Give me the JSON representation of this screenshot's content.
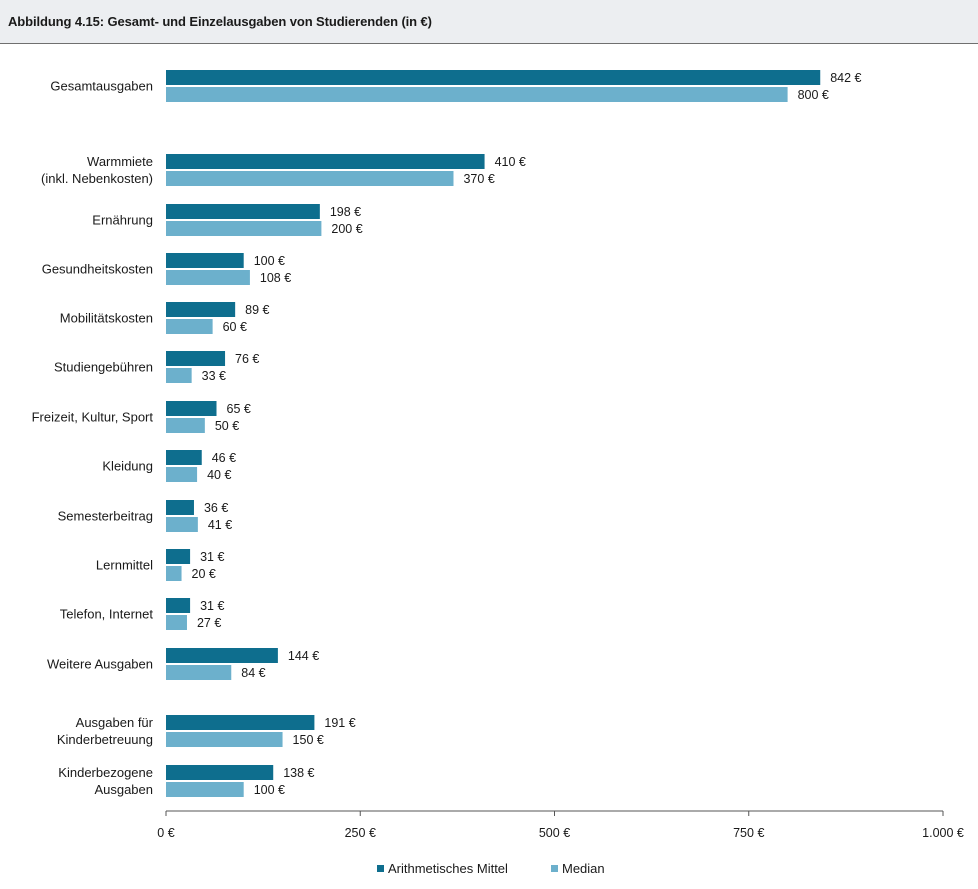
{
  "title": "Abbildung 4.15: Gesamt- und Einzelausgaben von Studierenden (in €)",
  "colors": {
    "mean": "#0e6e8e",
    "median": "#6cb0cc",
    "axis": "#555555",
    "title_bg": "#eceef1"
  },
  "chart_data": {
    "type": "bar",
    "orientation": "horizontal",
    "categories": [
      [
        "Gesamtausgaben"
      ],
      [
        "Warmmiete",
        "(inkl. Nebenkosten)"
      ],
      [
        "Ernährung"
      ],
      [
        "Gesundheitskosten"
      ],
      [
        "Mobilitätskosten"
      ],
      [
        "Studiengebühren"
      ],
      [
        "Freizeit, Kultur, Sport"
      ],
      [
        "Kleidung"
      ],
      [
        "Semesterbeitrag"
      ],
      [
        "Lernmittel"
      ],
      [
        "Telefon, Internet"
      ],
      [
        "Weitere Ausgaben"
      ],
      [
        "Ausgaben für",
        "Kinderbetreuung"
      ],
      [
        "Kinderbezogene",
        "Ausgaben"
      ]
    ],
    "series": [
      {
        "name": "Arithmetisches Mittel",
        "values": [
          842,
          410,
          198,
          100,
          89,
          76,
          65,
          46,
          36,
          31,
          31,
          144,
          191,
          138
        ],
        "labels": [
          "842 €",
          "410 €",
          "198 €",
          "100 €",
          "89 €",
          "76 €",
          "65 €",
          "46 €",
          "36 €",
          "31 €",
          "31 €",
          "144 €",
          "191 €",
          "138 €"
        ]
      },
      {
        "name": "Median",
        "values": [
          800,
          370,
          200,
          108,
          60,
          33,
          50,
          40,
          41,
          20,
          27,
          84,
          150,
          100
        ],
        "labels": [
          "800 €",
          "370 €",
          "200 €",
          "108 €",
          "60 €",
          "33 €",
          "50 €",
          "40 €",
          "41 €",
          "20 €",
          "27 €",
          "84 €",
          "150 €",
          "100 €"
        ]
      }
    ],
    "xlim": [
      0,
      1000
    ],
    "xticks": [
      0,
      250,
      500,
      750,
      1000
    ],
    "xtick_labels": [
      "0 €",
      "250 €",
      "500 €",
      "750 €",
      "1.000 €"
    ],
    "grid": false,
    "legend_position": "bottom-center"
  }
}
